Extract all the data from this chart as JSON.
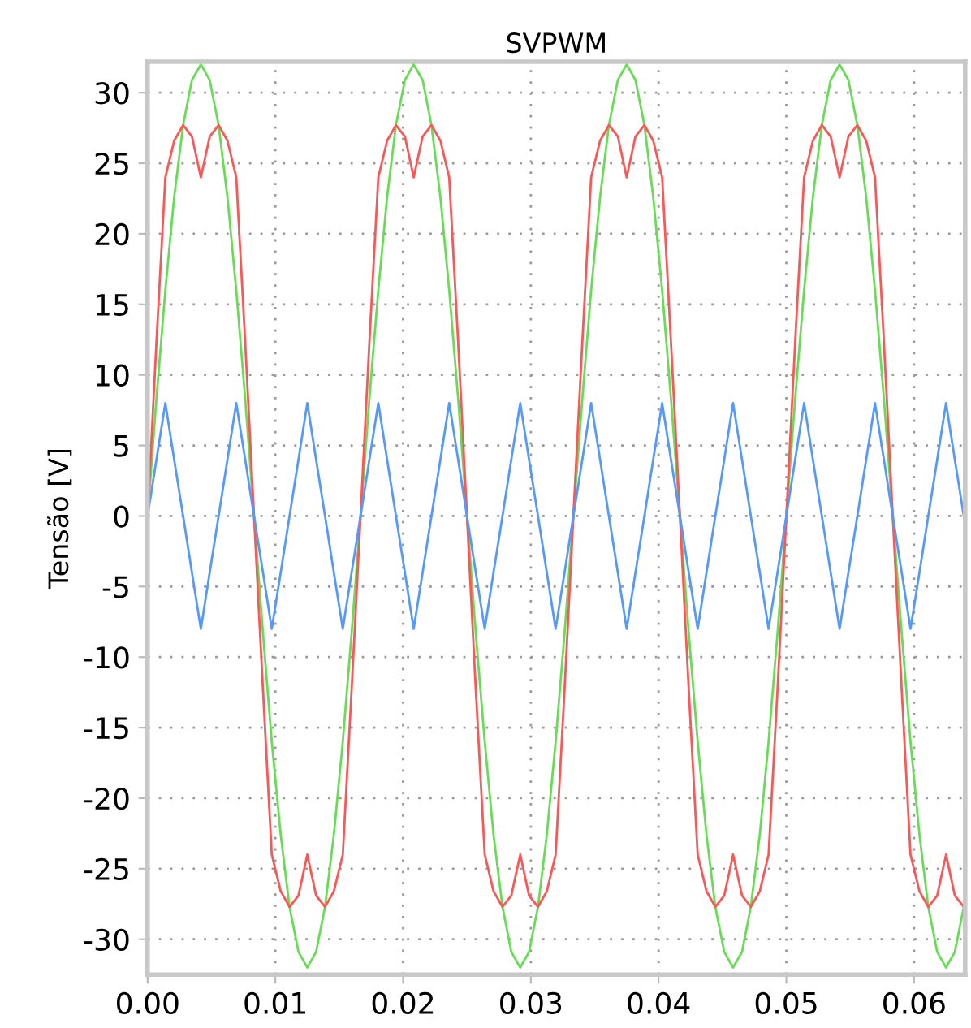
{
  "chart_data": {
    "type": "line",
    "title": "SVPWM",
    "ylabel": "Tensão [V]",
    "x": [
      0,
      0.00069,
      0.00139,
      0.00208,
      0.00278,
      0.00347,
      0.00417,
      0.00486,
      0.00556,
      0.00625,
      0.00694,
      0.00764,
      0.00833,
      0.00903,
      0.00972,
      0.01042,
      0.01111,
      0.01181,
      0.0125,
      0.01319,
      0.01389,
      0.01458,
      0.01528,
      0.01597,
      0.01667,
      0.01736,
      0.01806,
      0.01875,
      0.01944,
      0.02014,
      0.02083,
      0.02153,
      0.02222,
      0.02292,
      0.02361,
      0.02431,
      0.025,
      0.02569,
      0.02639,
      0.02708,
      0.02778,
      0.02847,
      0.02917,
      0.02986,
      0.03056,
      0.03125,
      0.03194,
      0.03264,
      0.03333,
      0.03403,
      0.03472,
      0.03542,
      0.03611,
      0.03681,
      0.0375,
      0.03819,
      0.03889,
      0.03958,
      0.04028,
      0.04097,
      0.04167,
      0.04236,
      0.04306,
      0.04375,
      0.04444,
      0.04514,
      0.04583,
      0.04653,
      0.04722,
      0.04792,
      0.04861,
      0.04931,
      0.05,
      0.05069,
      0.05139,
      0.05208,
      0.05278,
      0.05347,
      0.05417,
      0.05486,
      0.05556,
      0.05625,
      0.05694,
      0.05764,
      0.05833,
      0.05903,
      0.05972,
      0.06042,
      0.06111,
      0.06181,
      0.0625,
      0.06319,
      0.06389
    ],
    "series": [
      {
        "color": "#66dd55",
        "values": [
          0,
          8.3,
          16,
          22.6,
          27.7,
          30.9,
          32,
          30.9,
          27.7,
          22.6,
          16,
          8.3,
          0,
          -8.3,
          -16,
          -22.6,
          -27.7,
          -30.9,
          -32,
          -30.9,
          -27.7,
          -22.6,
          -16,
          -8.3,
          0,
          8.3,
          16,
          22.6,
          27.7,
          30.9,
          32,
          30.9,
          27.7,
          22.6,
          16,
          8.3,
          0,
          -8.3,
          -16,
          -22.6,
          -27.7,
          -30.9,
          -32,
          -30.9,
          -27.7,
          -22.6,
          -16,
          -8.3,
          0,
          8.3,
          16,
          22.6,
          27.7,
          30.9,
          32,
          30.9,
          27.7,
          22.6,
          16,
          8.3,
          0,
          -8.3,
          -16,
          -22.6,
          -27.7,
          -30.9,
          -32,
          -30.9,
          -27.7,
          -22.6,
          -16,
          -8.3,
          0,
          8.3,
          16,
          22.6,
          27.7,
          30.9,
          32,
          30.9,
          27.7,
          22.6,
          16,
          8.3,
          0,
          -8.3,
          -16,
          -22.6,
          -27.7,
          -30.9,
          -32,
          -30.9,
          -27.7
        ]
      },
      {
        "color": "#ff5555",
        "values": [
          0,
          12.3,
          24,
          26.6,
          27.7,
          26.9,
          24,
          26.9,
          27.7,
          26.6,
          24,
          12.3,
          0,
          -12.3,
          -24,
          -26.6,
          -27.7,
          -26.9,
          -24,
          -26.9,
          -27.7,
          -26.6,
          -24,
          -12.3,
          0,
          12.3,
          24,
          26.6,
          27.7,
          26.9,
          24,
          26.9,
          27.7,
          26.6,
          24,
          12.3,
          0,
          -12.3,
          -24,
          -26.6,
          -27.7,
          -26.9,
          -24,
          -26.9,
          -27.7,
          -26.6,
          -24,
          -12.3,
          0,
          12.3,
          24,
          26.6,
          27.7,
          26.9,
          24,
          26.9,
          27.7,
          26.6,
          24,
          12.3,
          0,
          -12.3,
          -24,
          -26.6,
          -27.7,
          -26.9,
          -24,
          -26.9,
          -27.7,
          -26.6,
          -24,
          -12.3,
          0,
          12.3,
          24,
          26.6,
          27.7,
          26.9,
          24,
          26.9,
          27.7,
          26.6,
          24,
          12.3,
          0,
          -12.3,
          -24,
          -26.6,
          -27.7,
          -26.9,
          -24,
          -26.9,
          -27.7
        ]
      },
      {
        "color": "#5599ff",
        "values": [
          0,
          4,
          8,
          4,
          0,
          -4,
          -8,
          -4,
          0,
          4,
          8,
          4,
          0,
          -4,
          -8,
          -4,
          0,
          4,
          8,
          4,
          0,
          -4,
          -8,
          -4,
          0,
          4,
          8,
          4,
          0,
          -4,
          -8,
          -4,
          0,
          4,
          8,
          4,
          0,
          -4,
          -8,
          -4,
          0,
          4,
          8,
          4,
          0,
          -4,
          -8,
          -4,
          0,
          4,
          8,
          4,
          0,
          -4,
          -8,
          -4,
          0,
          4,
          8,
          4,
          0,
          -4,
          -8,
          -4,
          0,
          4,
          8,
          4,
          0,
          -4,
          -8,
          -4,
          0,
          4,
          8,
          4,
          0,
          -4,
          -8,
          -4,
          0,
          4,
          8,
          4,
          0,
          -4,
          -8,
          -4,
          0,
          4,
          8,
          4,
          0
        ]
      }
    ],
    "xlim": [
      0,
      0.064
    ],
    "ylim": [
      -32.5,
      32.2
    ],
    "xticks": [
      {
        "value": 0,
        "label": "0.00"
      },
      {
        "value": 0.01,
        "label": "0.01"
      },
      {
        "value": 0.02,
        "label": "0.02"
      },
      {
        "value": 0.03,
        "label": "0.03"
      },
      {
        "value": 0.04,
        "label": "0.04"
      },
      {
        "value": 0.05,
        "label": "0.05"
      },
      {
        "value": 0.06,
        "label": "0.06"
      }
    ],
    "yticks": [
      -30,
      -25,
      -20,
      -15,
      -10,
      -5,
      0,
      5,
      10,
      15,
      20,
      25,
      30
    ],
    "grid": true,
    "line_style": "solid",
    "marker": "none"
  }
}
